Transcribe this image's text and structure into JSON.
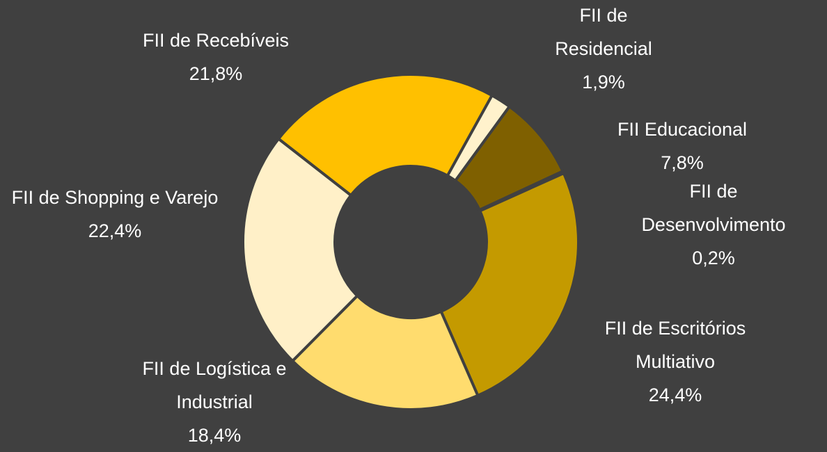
{
  "chart_data": {
    "type": "donut",
    "categories": [
      "FII de Recebíveis",
      "FII de Residencial",
      "FII Educacional",
      "FII de Desenvolvimento",
      "FII de Escritórios Multiativo",
      "FII de Logística e Industrial",
      "FII de Shopping e Varejo"
    ],
    "values": [
      21.8,
      1.9,
      7.8,
      0.2,
      24.4,
      18.4,
      22.4
    ],
    "value_labels": [
      "21,8%",
      "1,9%",
      "7,8%",
      "0,2%",
      "24,4%",
      "18,4%",
      "22,4%"
    ],
    "colors": [
      "#ffc000",
      "#fff2cc",
      "#7f6000",
      "#ffd966",
      "#c49a00",
      "#ffdc6e",
      "#fff0c8"
    ]
  }
}
